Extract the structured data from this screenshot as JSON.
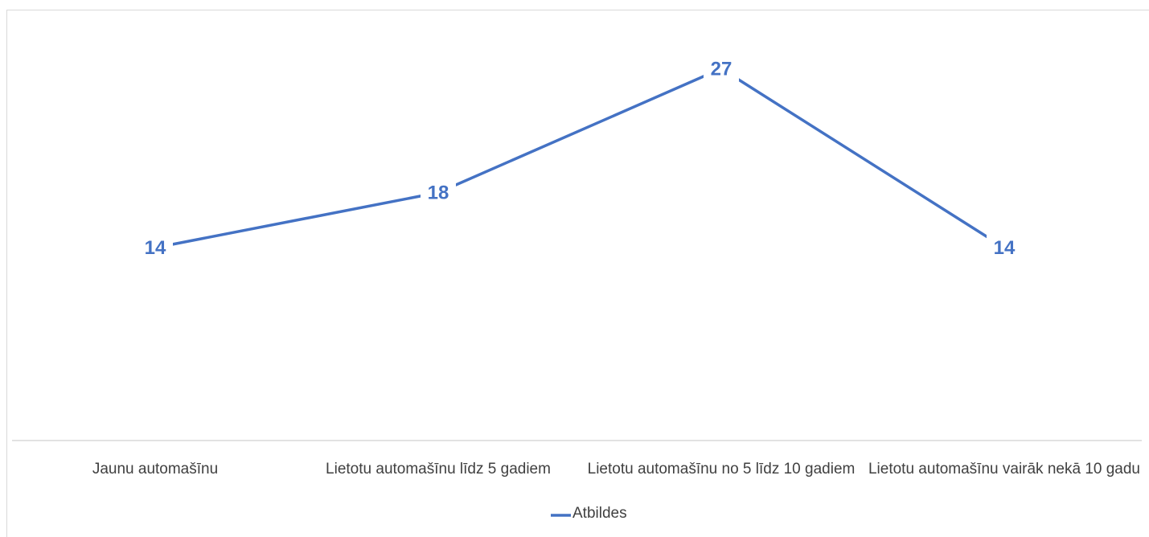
{
  "chart_data": {
    "type": "line",
    "categories": [
      "Jaunu automašīnu",
      "Lietotu automašīnu līdz 5 gadiem",
      "Lietotu automašīnu no 5 līdz 10 gadiem",
      "Lietotu automašīnu vairāk nekā 10 gadu"
    ],
    "series": [
      {
        "name": "Atbildes",
        "color": "#4472c4",
        "values": [
          14,
          18,
          27,
          14
        ]
      }
    ],
    "ylim": [
      0,
      30
    ],
    "legend": "bottom"
  }
}
